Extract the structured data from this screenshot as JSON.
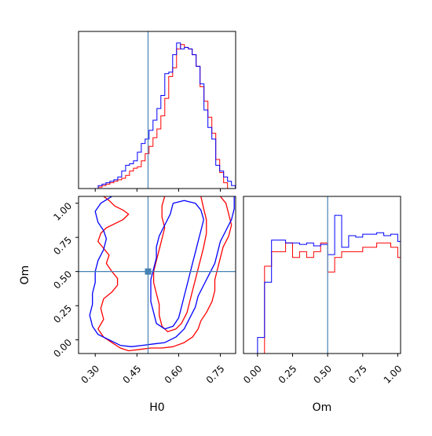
{
  "chart_data": {
    "type": "corner",
    "parameters": [
      "H0",
      "Om"
    ],
    "truth": {
      "H0": 0.49,
      "Om": 0.5
    },
    "truth_color": "#4682b4",
    "series": [
      {
        "color": "#ff0000"
      },
      {
        "color": "#0000ff"
      }
    ],
    "panels": [
      {
        "id": "hist-H0",
        "type": "histogram-step",
        "xlim": [
          0.24,
          0.805
        ],
        "ylim": [
          0,
          1.08
        ],
        "xticks": [
          0.3,
          0.45,
          0.6,
          0.75
        ],
        "y_ticks_shown": false,
        "bin_start": 0.24,
        "bin_width": 0.0141,
        "series_values": [
          [
            0,
            0,
            0,
            0,
            0,
            0.01,
            0.02,
            0.03,
            0.04,
            0.05,
            0.06,
            0.07,
            0.09,
            0.12,
            0.14,
            0.15,
            0.19,
            0.24,
            0.29,
            0.35,
            0.41,
            0.5,
            0.62,
            0.77,
            0.83,
            0.96,
            0.99,
            0.97,
            0.96,
            0.92,
            0.84,
            0.7,
            0.6,
            0.49,
            0.38,
            0.2,
            0.11,
            0.04,
            0,
            0,
            0
          ],
          [
            0,
            0,
            0,
            0,
            0,
            0.02,
            0.03,
            0.04,
            0.05,
            0.06,
            0.08,
            0.12,
            0.16,
            0.17,
            0.19,
            0.25,
            0.31,
            0.34,
            0.4,
            0.47,
            0.55,
            0.64,
            0.79,
            0.8,
            0.92,
            1.0,
            0.96,
            0.97,
            0.96,
            0.92,
            0.84,
            0.72,
            0.54,
            0.42,
            0.34,
            0.16,
            0.12,
            0.08,
            0.05,
            0.02,
            0
          ]
        ]
      },
      {
        "id": "hist-Om",
        "type": "histogram-step",
        "xlim": [
          -0.1,
          1.02
        ],
        "ylim": [
          0,
          1.08
        ],
        "xticks": [
          0.0,
          0.25,
          0.5,
          0.75,
          1.0
        ],
        "xlabel": "Om",
        "y_ticks_shown": false,
        "bin_start": -0.05,
        "bin_width": 0.05,
        "series_values": [
          [
            0,
            0,
            0.6,
            0.7,
            0.7,
            0.76,
            0.66,
            0.7,
            0.66,
            0.7,
            0.76,
            0.56,
            0.66,
            0.7,
            0.7,
            0.7,
            0.73,
            0.73,
            0.76,
            0.76,
            0.73,
            0.66,
            0.6,
            0.33,
            0.0
          ],
          [
            0,
            0.11,
            0.49,
            0.78,
            0.78,
            0.76,
            0.76,
            0.75,
            0.76,
            0.74,
            0.75,
            0.68,
            0.95,
            0.73,
            0.81,
            0.8,
            0.82,
            0.82,
            0.83,
            0.81,
            0.82,
            0.77,
            0.76,
            0.62,
            0.3
          ]
        ]
      },
      {
        "id": "contour-H0-Om",
        "type": "contour",
        "xlim": [
          0.24,
          0.805
        ],
        "ylim": [
          -0.1,
          1.05
        ],
        "xticks": [
          0.3,
          0.45,
          0.6,
          0.75
        ],
        "yticks": [
          0.0,
          0.25,
          0.5,
          0.75,
          1.0
        ],
        "xlabel": "H0",
        "ylabel": "Om",
        "contours": [
          {
            "series": 0,
            "points": [
              [
                0.33,
                1.05
              ],
              [
                0.35,
                1.02
              ],
              [
                0.37,
                0.98
              ],
              [
                0.4,
                0.95
              ],
              [
                0.42,
                0.92
              ],
              [
                0.4,
                0.88
              ],
              [
                0.37,
                0.85
              ],
              [
                0.34,
                0.82
              ],
              [
                0.32,
                0.78
              ],
              [
                0.31,
                0.72
              ],
              [
                0.33,
                0.67
              ],
              [
                0.35,
                0.62
              ],
              [
                0.34,
                0.56
              ],
              [
                0.36,
                0.5
              ],
              [
                0.38,
                0.45
              ],
              [
                0.38,
                0.4
              ],
              [
                0.36,
                0.35
              ],
              [
                0.33,
                0.3
              ],
              [
                0.32,
                0.23
              ],
              [
                0.33,
                0.15
              ],
              [
                0.31,
                0.08
              ],
              [
                0.33,
                0.02
              ],
              [
                0.36,
                -0.02
              ],
              [
                0.39,
                -0.06
              ],
              [
                0.42,
                -0.08
              ],
              [
                0.46,
                -0.07
              ],
              [
                0.5,
                -0.06
              ],
              [
                0.54,
                -0.06
              ],
              [
                0.58,
                -0.05
              ],
              [
                0.62,
                -0.02
              ],
              [
                0.65,
                0.02
              ],
              [
                0.67,
                0.08
              ],
              [
                0.68,
                0.14
              ],
              [
                0.7,
                0.2
              ],
              [
                0.72,
                0.28
              ],
              [
                0.73,
                0.36
              ],
              [
                0.73,
                0.44
              ],
              [
                0.74,
                0.52
              ],
              [
                0.75,
                0.6
              ],
              [
                0.76,
                0.68
              ],
              [
                0.78,
                0.76
              ],
              [
                0.79,
                0.84
              ],
              [
                0.78,
                0.92
              ],
              [
                0.77,
                1.0
              ],
              [
                0.75,
                1.05
              ]
            ]
          },
          {
            "series": 0,
            "points": [
              [
                0.55,
                1.05
              ],
              [
                0.54,
                0.98
              ],
              [
                0.54,
                0.9
              ],
              [
                0.55,
                0.82
              ],
              [
                0.54,
                0.74
              ],
              [
                0.53,
                0.66
              ],
              [
                0.52,
                0.58
              ],
              [
                0.51,
                0.5
              ],
              [
                0.51,
                0.42
              ],
              [
                0.52,
                0.34
              ],
              [
                0.53,
                0.26
              ],
              [
                0.53,
                0.18
              ],
              [
                0.54,
                0.1
              ],
              [
                0.56,
                0.06
              ],
              [
                0.59,
                0.08
              ],
              [
                0.61,
                0.12
              ],
              [
                0.63,
                0.2
              ],
              [
                0.64,
                0.28
              ],
              [
                0.65,
                0.36
              ],
              [
                0.66,
                0.44
              ],
              [
                0.67,
                0.52
              ],
              [
                0.68,
                0.6
              ],
              [
                0.69,
                0.68
              ],
              [
                0.7,
                0.78
              ],
              [
                0.7,
                0.88
              ],
              [
                0.69,
                0.96
              ],
              [
                0.68,
                1.05
              ]
            ]
          },
          {
            "series": 1,
            "points": [
              [
                0.36,
                1.05
              ],
              [
                0.32,
                1.0
              ],
              [
                0.3,
                0.94
              ],
              [
                0.31,
                0.86
              ],
              [
                0.33,
                0.8
              ],
              [
                0.34,
                0.74
              ],
              [
                0.33,
                0.66
              ],
              [
                0.31,
                0.58
              ],
              [
                0.3,
                0.5
              ],
              [
                0.3,
                0.42
              ],
              [
                0.29,
                0.34
              ],
              [
                0.29,
                0.26
              ],
              [
                0.28,
                0.18
              ],
              [
                0.29,
                0.1
              ],
              [
                0.31,
                0.04
              ],
              [
                0.35,
                0.0
              ],
              [
                0.39,
                -0.04
              ],
              [
                0.43,
                -0.05
              ],
              [
                0.47,
                -0.04
              ],
              [
                0.51,
                -0.03
              ],
              [
                0.55,
                -0.02
              ],
              [
                0.59,
                0.02
              ],
              [
                0.62,
                0.08
              ],
              [
                0.64,
                0.16
              ],
              [
                0.66,
                0.24
              ],
              [
                0.67,
                0.32
              ],
              [
                0.69,
                0.4
              ],
              [
                0.71,
                0.48
              ],
              [
                0.73,
                0.56
              ],
              [
                0.74,
                0.64
              ],
              [
                0.75,
                0.72
              ],
              [
                0.77,
                0.8
              ],
              [
                0.79,
                0.88
              ],
              [
                0.8,
                0.96
              ],
              [
                0.8,
                1.05
              ]
            ]
          },
          {
            "series": 1,
            "points": [
              [
                0.58,
                1.0
              ],
              [
                0.57,
                0.92
              ],
              [
                0.55,
                0.84
              ],
              [
                0.53,
                0.76
              ],
              [
                0.52,
                0.68
              ],
              [
                0.52,
                0.6
              ],
              [
                0.51,
                0.52
              ],
              [
                0.5,
                0.44
              ],
              [
                0.5,
                0.36
              ],
              [
                0.5,
                0.28
              ],
              [
                0.51,
                0.2
              ],
              [
                0.52,
                0.12
              ],
              [
                0.55,
                0.08
              ],
              [
                0.58,
                0.1
              ],
              [
                0.6,
                0.16
              ],
              [
                0.61,
                0.24
              ],
              [
                0.62,
                0.32
              ],
              [
                0.63,
                0.4
              ],
              [
                0.64,
                0.48
              ],
              [
                0.65,
                0.56
              ],
              [
                0.66,
                0.64
              ],
              [
                0.67,
                0.72
              ],
              [
                0.68,
                0.8
              ],
              [
                0.69,
                0.88
              ],
              [
                0.68,
                0.95
              ],
              [
                0.66,
                1.0
              ],
              [
                0.62,
                1.02
              ],
              [
                0.58,
                1.0
              ]
            ]
          }
        ]
      }
    ]
  }
}
